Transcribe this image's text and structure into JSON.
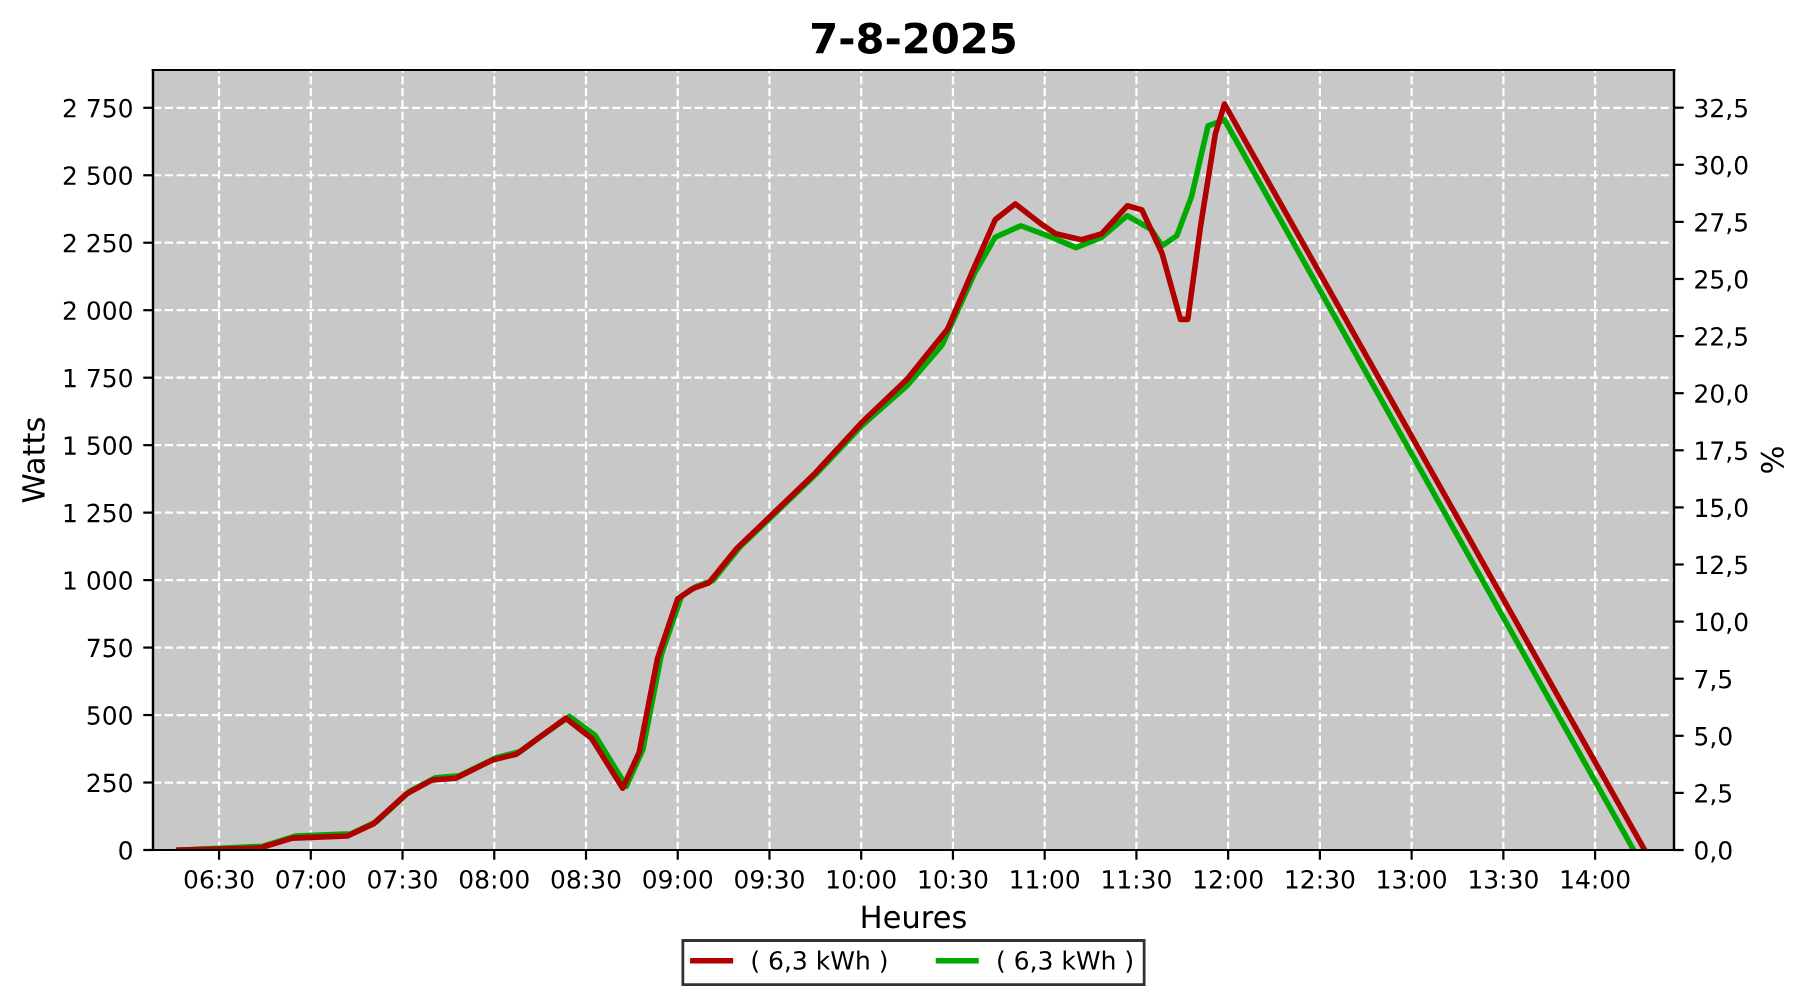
{
  "chart_data": {
    "type": "line",
    "title": "7-8-2025",
    "xlabel": "Heures",
    "ylabel": "Watts",
    "y2label": "%",
    "xlim": [
      6.14,
      14.43
    ],
    "xticks": [
      {
        "value": 6.5,
        "label": "06:30"
      },
      {
        "value": 7,
        "label": "07:00"
      },
      {
        "value": 7.5,
        "label": "07:30"
      },
      {
        "value": 8,
        "label": "08:00"
      },
      {
        "value": 8.5,
        "label": "08:30"
      },
      {
        "value": 9,
        "label": "09:00"
      },
      {
        "value": 9.5,
        "label": "09:30"
      },
      {
        "value": 10,
        "label": "10:00"
      },
      {
        "value": 10.5,
        "label": "10:30"
      },
      {
        "value": 11,
        "label": "11:00"
      },
      {
        "value": 11.5,
        "label": "11:30"
      },
      {
        "value": 12,
        "label": "12:00"
      },
      {
        "value": 12.5,
        "label": "12:30"
      },
      {
        "value": 13,
        "label": "13:00"
      },
      {
        "value": 13.5,
        "label": "13:30"
      },
      {
        "value": 14,
        "label": "14:00"
      }
    ],
    "ylim": [
      0,
      2890
    ],
    "yticks": [
      0,
      250,
      500,
      750,
      {
        "value": 1000,
        "label": "1 000"
      },
      {
        "value": 1250,
        "label": "1 250"
      },
      {
        "value": 1500,
        "label": "1 500"
      },
      {
        "value": 1750,
        "label": "1 750"
      },
      {
        "value": 2000,
        "label": "2 000"
      },
      {
        "value": 2250,
        "label": "2 250"
      },
      {
        "value": 2500,
        "label": "2 500"
      },
      {
        "value": 2750,
        "label": "2 750"
      }
    ],
    "y2lim": [
      0,
      34.15
    ],
    "y2ticks": [
      {
        "value": 0,
        "label": "0,0"
      },
      {
        "value": 2.5,
        "label": "2,5"
      },
      {
        "value": 5,
        "label": "5,0"
      },
      {
        "value": 7.5,
        "label": "7,5"
      },
      {
        "value": 10,
        "label": "10,0"
      },
      {
        "value": 12.5,
        "label": "12,5"
      },
      {
        "value": 15,
        "label": "15,0"
      },
      {
        "value": 17.5,
        "label": "17,5"
      },
      {
        "value": 20,
        "label": "20,0"
      },
      {
        "value": 22.5,
        "label": "22,5"
      },
      {
        "value": 25,
        "label": "25,0"
      },
      {
        "value": 27.5,
        "label": "27,5"
      },
      {
        "value": 30,
        "label": "30,0"
      },
      {
        "value": 32.5,
        "label": "32,5"
      }
    ],
    "grid": true,
    "legend": "bottom",
    "line_style": "solid",
    "series": [
      {
        "name": "( 6,3 kWh )",
        "color": "#b00000",
        "x": [
          6.28,
          6.72,
          6.9,
          7.2,
          7.34,
          7.52,
          7.66,
          7.79,
          7.99,
          8.12,
          8.24,
          8.39,
          8.53,
          8.7,
          8.79,
          8.89,
          9.0,
          9.08,
          9.17,
          9.32,
          9.49,
          9.75,
          10.0,
          10.25,
          10.47,
          10.62,
          10.73,
          10.84,
          10.98,
          11.06,
          11.2,
          11.31,
          11.45,
          11.53,
          11.64,
          11.74,
          11.78,
          11.85,
          11.93,
          11.98,
          14.27
        ],
        "values": [
          0,
          7,
          44,
          52,
          96,
          207,
          259,
          266,
          333,
          355,
          414,
          488,
          414,
          229,
          362,
          710,
          931,
          968,
          990,
          1116,
          1227,
          1397,
          1582,
          1744,
          1929,
          2165,
          2335,
          2394,
          2320,
          2283,
          2261,
          2283,
          2387,
          2372,
          2210,
          1966,
          1966,
          2313,
          2653,
          2764,
          0
        ]
      },
      {
        "name": "( 6,3 kWh )",
        "color": "#00aa00",
        "x": [
          6.3,
          6.74,
          6.92,
          7.22,
          7.36,
          7.54,
          7.68,
          7.81,
          8.01,
          8.14,
          8.26,
          8.41,
          8.55,
          8.72,
          8.81,
          8.91,
          9.02,
          9.1,
          9.19,
          9.34,
          9.51,
          9.75,
          10.0,
          10.25,
          10.44,
          10.62,
          10.73,
          10.87,
          11.04,
          11.17,
          11.31,
          11.45,
          11.58,
          11.64,
          11.72,
          11.8,
          11.89,
          11.98,
          14.21
        ],
        "values": [
          0,
          14,
          52,
          60,
          106,
          218,
          268,
          275,
          342,
          364,
          424,
          495,
          424,
          236,
          372,
          722,
          940,
          976,
          998,
          1124,
          1234,
          1390,
          1570,
          1720,
          1870,
          2140,
          2270,
          2313,
          2270,
          2232,
          2270,
          2350,
          2300,
          2239,
          2276,
          2420,
          2683,
          2705,
          0
        ]
      }
    ]
  }
}
